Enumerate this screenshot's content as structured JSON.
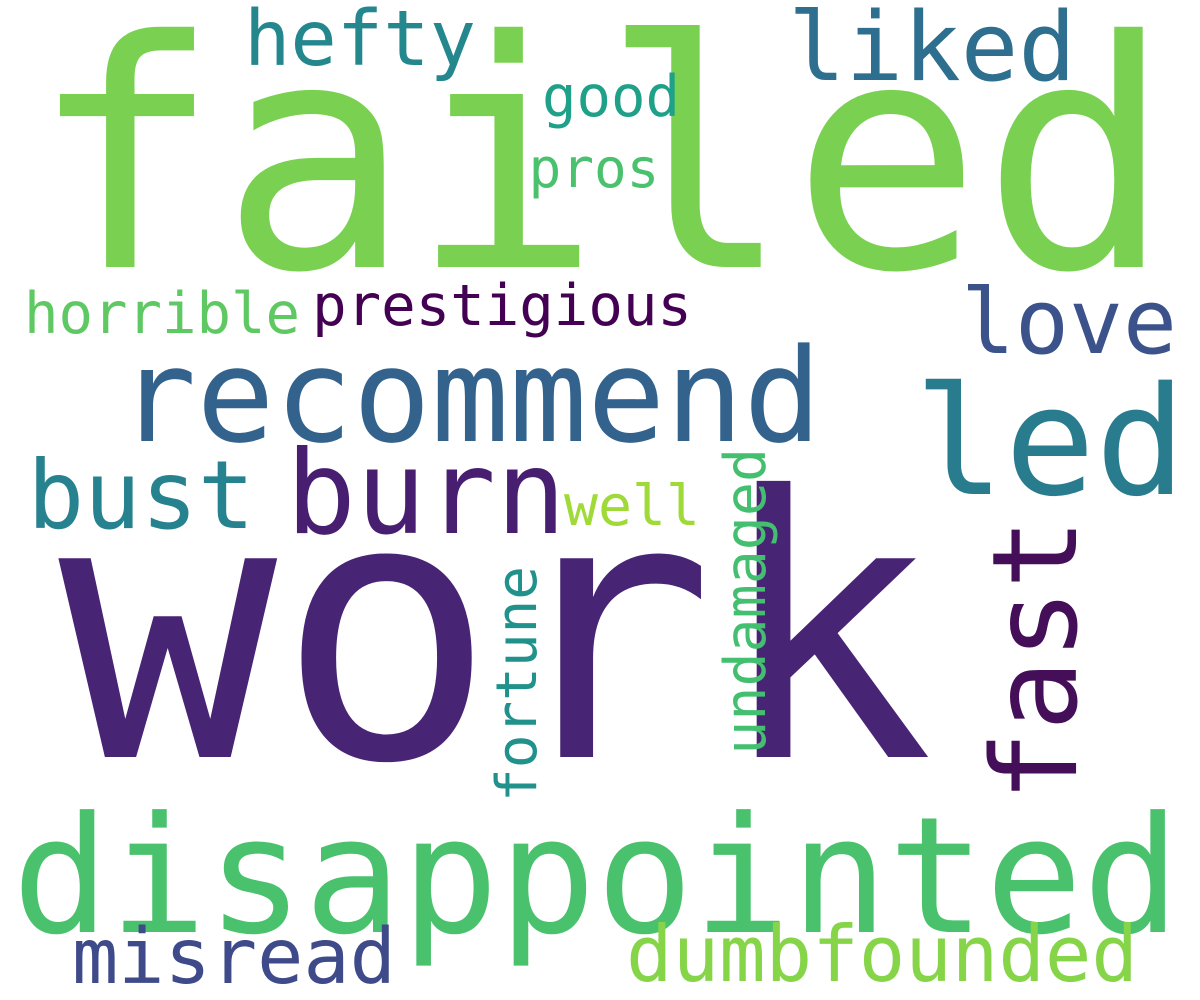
{
  "words": [
    {
      "id": "failed",
      "text": "failed",
      "color": "#7ad151"
    },
    {
      "id": "work",
      "text": "work",
      "color": "#482475"
    },
    {
      "id": "recommend",
      "text": "recommend",
      "color": "#33638d"
    },
    {
      "id": "disappointed",
      "text": "disappointed",
      "color": "#4ac16d"
    },
    {
      "id": "led",
      "text": "led",
      "color": "#287c8e"
    },
    {
      "id": "burn",
      "text": "burn",
      "color": "#481f70"
    },
    {
      "id": "fast",
      "text": "fast",
      "color": "#440f58"
    },
    {
      "id": "bust",
      "text": "bust",
      "color": "#26828e"
    },
    {
      "id": "love",
      "text": "love",
      "color": "#3b528b"
    },
    {
      "id": "liked",
      "text": "liked",
      "color": "#2e6e8e"
    },
    {
      "id": "hefty",
      "text": "hefty",
      "color": "#24878e"
    },
    {
      "id": "misread",
      "text": "misread",
      "color": "#3e4a89"
    },
    {
      "id": "dumbfounded",
      "text": "dumbfounded",
      "color": "#86d549"
    },
    {
      "id": "prestigious",
      "text": "prestigious",
      "color": "#440154"
    },
    {
      "id": "horrible",
      "text": "horrible",
      "color": "#5ec962"
    },
    {
      "id": "undamaged",
      "text": "undamaged",
      "color": "#44bf70"
    },
    {
      "id": "fortune",
      "text": "fortune",
      "color": "#21918c"
    },
    {
      "id": "good",
      "text": "good",
      "color": "#1fa088"
    },
    {
      "id": "pros",
      "text": "pros",
      "color": "#4ac16d"
    },
    {
      "id": "well",
      "text": "well",
      "color": "#a0da39"
    }
  ]
}
